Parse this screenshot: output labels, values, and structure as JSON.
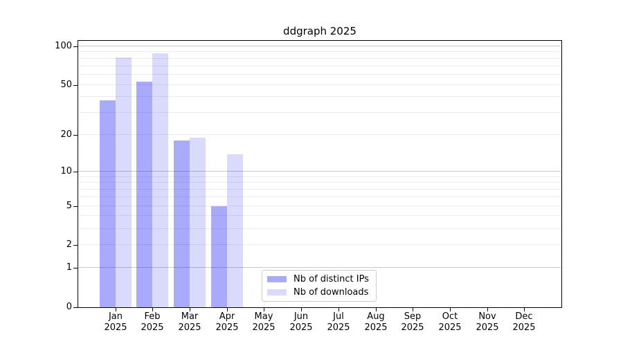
{
  "chart_data": {
    "type": "bar",
    "title": "ddgraph 2025",
    "categories": [
      "Jan 2025",
      "Feb 2025",
      "Mar 2025",
      "Apr 2025",
      "May 2025",
      "Jun 2025",
      "Jul 2025",
      "Aug 2025",
      "Sep 2025",
      "Oct 2025",
      "Nov 2025",
      "Dec 2025"
    ],
    "series": [
      {
        "name": "Nb of distinct IPs",
        "color": "#aaaafb",
        "fill": "rgba(0,0,240,0.335)",
        "values": [
          38,
          53,
          18,
          5,
          0,
          0,
          0,
          0,
          0,
          0,
          0,
          0
        ]
      },
      {
        "name": "Nb of downloads",
        "color": "#dadafb",
        "fill": "rgba(0,0,240,0.145)",
        "values": [
          82,
          88,
          19,
          14,
          0,
          0,
          0,
          0,
          0,
          0,
          0,
          0
        ]
      }
    ],
    "y_axis": {
      "scale": "log1p",
      "ticks": [
        0,
        1,
        2,
        5,
        10,
        20,
        50,
        100
      ],
      "minor_gridlines": [
        2,
        3,
        4,
        5,
        6,
        7,
        8,
        9,
        20,
        30,
        40,
        50,
        60,
        70,
        80,
        90
      ],
      "major_gridlines": [
        1,
        10,
        100
      ],
      "ylim": [
        0,
        110
      ]
    },
    "legend_position": "lower center",
    "grid": true,
    "colors": {
      "minor_grid": "#ececec",
      "major_grid": "#c9c9c9",
      "spine": "#000000",
      "text": "#000000",
      "background": "#ffffff"
    }
  }
}
